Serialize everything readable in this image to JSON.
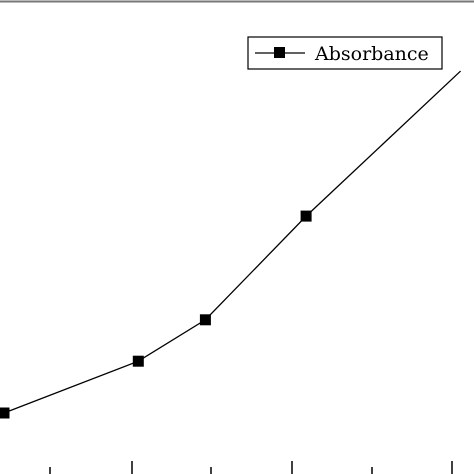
{
  "chart_data": {
    "type": "line",
    "title": "",
    "xlabel": "",
    "ylabel": "",
    "grid": false,
    "legend_position": "top-right",
    "series": [
      {
        "name": "Absorbance",
        "color": "#000000",
        "marker": "square",
        "x": [
          0,
          1,
          1.5,
          2.25
        ],
        "y": [
          0.0,
          0.25,
          0.45,
          0.95
        ]
      }
    ],
    "x_extension": {
      "x": 3.4,
      "y": 1.65
    },
    "xlim": [
      0,
      3.5
    ],
    "ylim": [
      0,
      1.8
    ]
  }
}
